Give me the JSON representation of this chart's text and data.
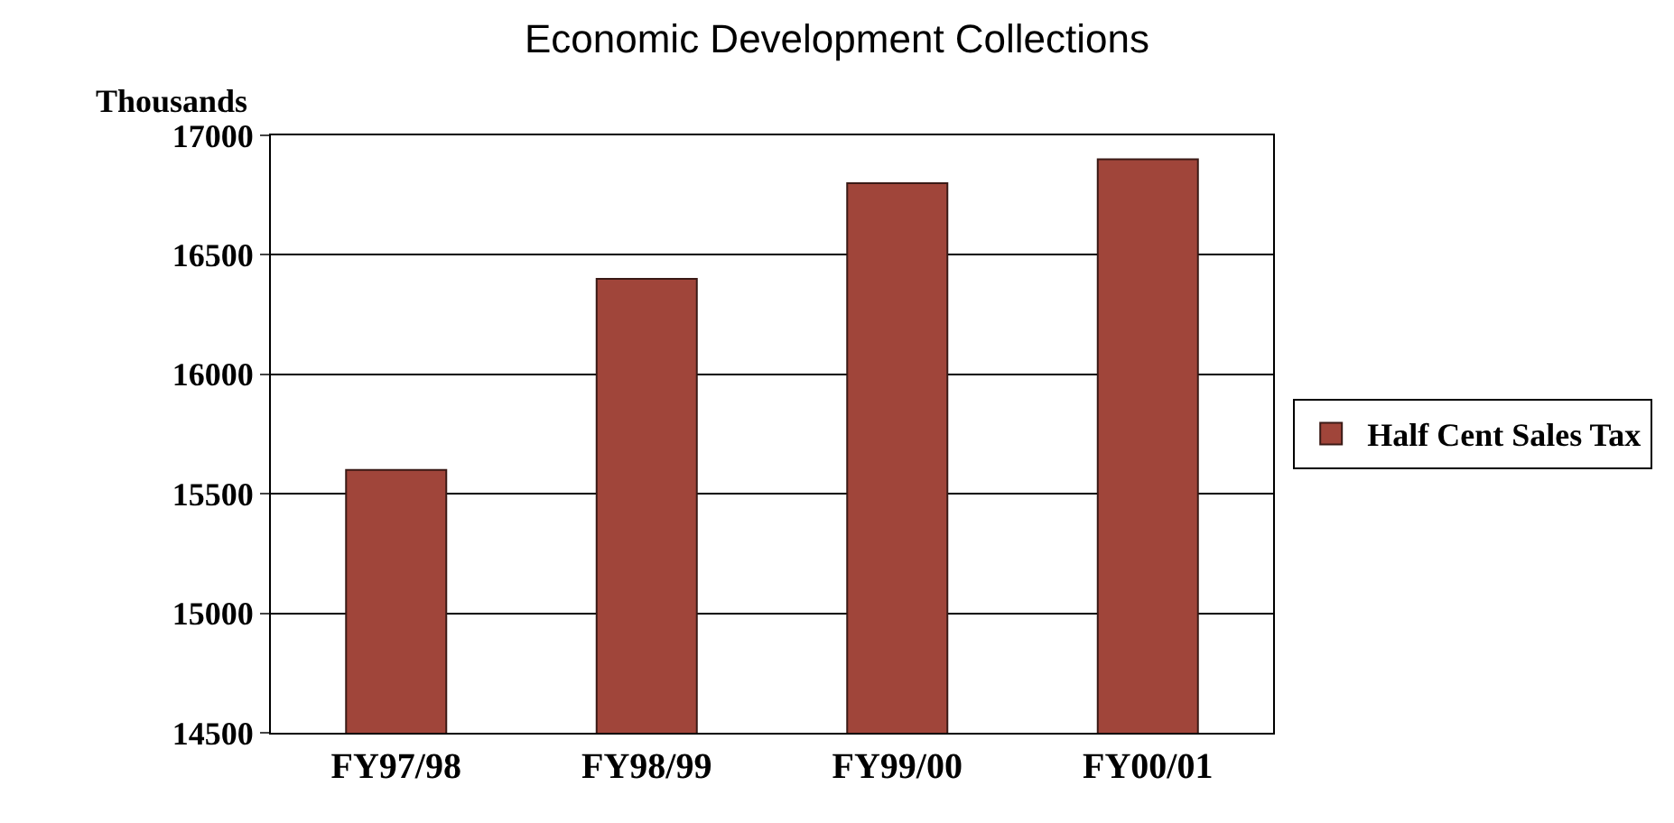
{
  "chart_data": {
    "type": "bar",
    "title": "Economic Development Collections",
    "ylabel": "Thousands",
    "categories": [
      "FY97/98",
      "FY98/99",
      "FY99/00",
      "FY00/01"
    ],
    "series": [
      {
        "name": "Half Cent Sales Tax",
        "color": "#a0453a",
        "values": [
          15600,
          16400,
          16800,
          16900
        ]
      }
    ],
    "ylim": [
      14500,
      17000
    ],
    "yticks": [
      14500,
      15000,
      15500,
      16000,
      16500,
      17000
    ],
    "grid": "y",
    "legend": "right"
  }
}
